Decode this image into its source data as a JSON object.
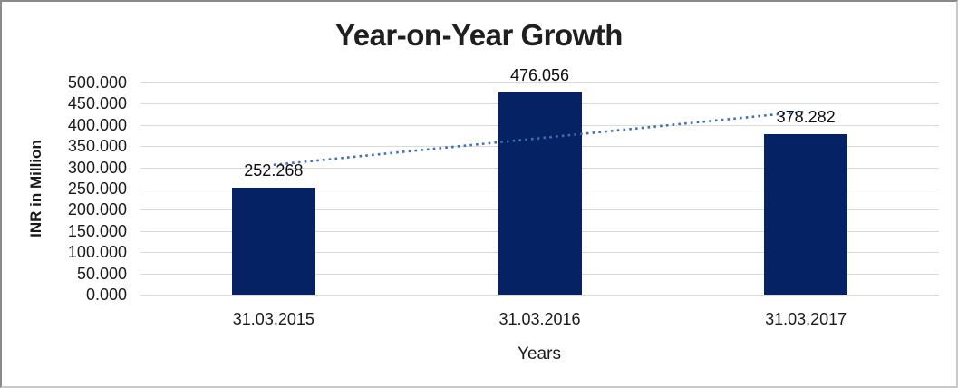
{
  "chart_data": {
    "type": "bar",
    "title": "Year-on-Year Growth",
    "categories": [
      "31.03.2015",
      "31.03.2016",
      "31.03.2017"
    ],
    "values": [
      252.268,
      476.056,
      378.282
    ],
    "value_labels": [
      "252.268",
      "476.056",
      "378.282"
    ],
    "xlabel": "Years",
    "ylabel": "INR in Million",
    "ylim": [
      0,
      500
    ],
    "y_tick_step": 50,
    "y_tick_labels": [
      "0.000",
      "50.000",
      "100.000",
      "150.000",
      "200.000",
      "250.000",
      "300.000",
      "350.000",
      "400.000",
      "450.000",
      "500.000"
    ],
    "grid": true,
    "legend": "none",
    "bar_color": "#042264",
    "gridline_color": "#d9d9d9",
    "trendline": {
      "type": "linear",
      "style": "dotted",
      "color": "#3f6fb5"
    }
  }
}
